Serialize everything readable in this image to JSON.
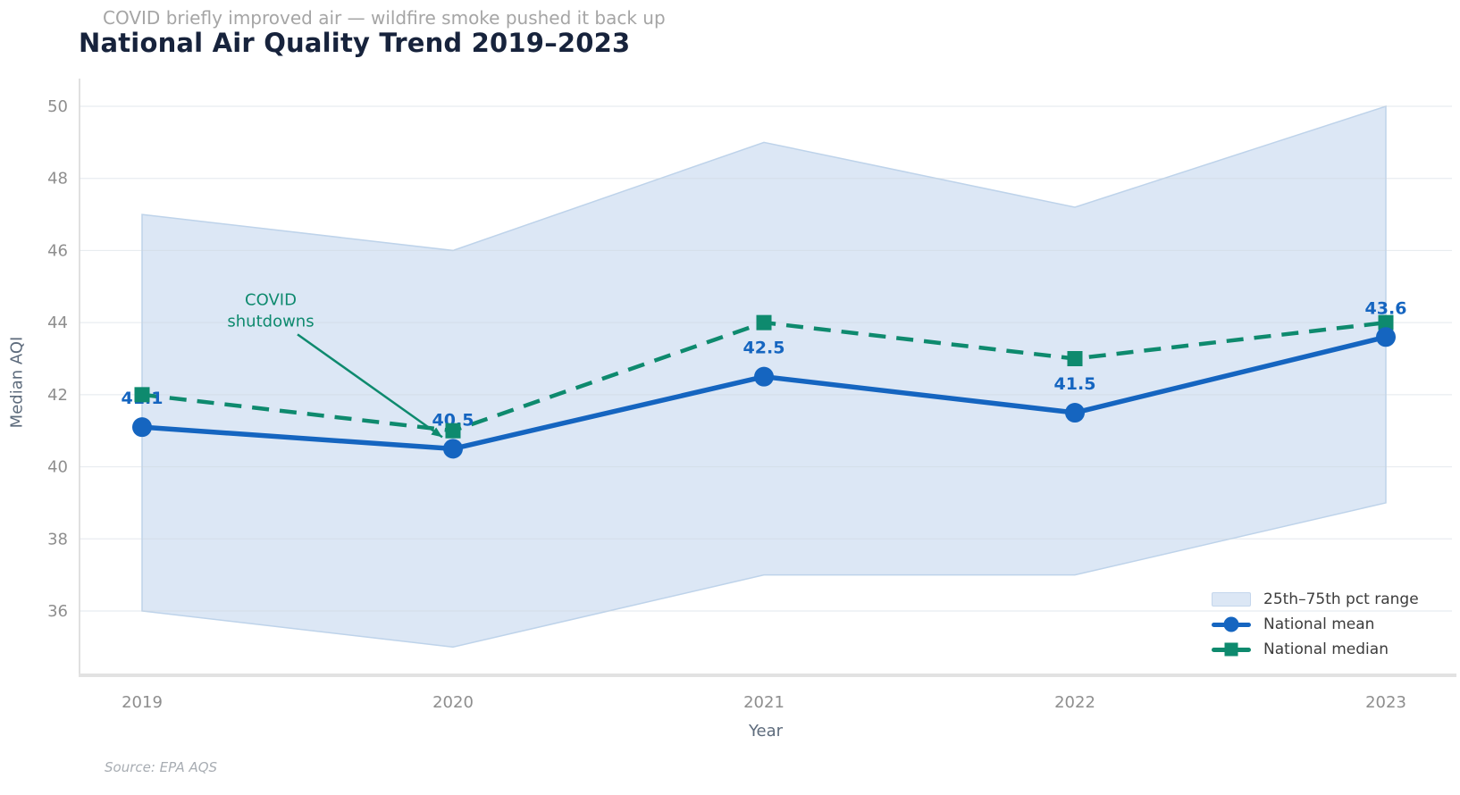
{
  "header": {
    "subtitle": "COVID briefly improved air — wildfire smoke pushed it back up",
    "title": "National Air Quality Trend 2019–2023"
  },
  "axes": {
    "xlabel": "Year",
    "ylabel": "Median AQI"
  },
  "footer": {
    "source": "Source: EPA AQS"
  },
  "legend": {
    "position": "lower right",
    "items": [
      {
        "label": "25th–75th pct range",
        "swatch": "band"
      },
      {
        "label": "National mean",
        "swatch": "line-circle"
      },
      {
        "label": "National median",
        "swatch": "line-square"
      }
    ]
  },
  "colors": {
    "mean_blue": "#1565c0",
    "median_green": "#0e8a6e",
    "band_fill": "#dce7f5",
    "band_edge": "#bed3ea",
    "grid": "#cdd5de",
    "tick_text": "#8e8e8e",
    "axis_label_text": "#5d6b7c",
    "title_text": "#17233c",
    "subtitle_text": "#a5a5a5"
  },
  "chart_data": {
    "type": "line",
    "title": "National Air Quality Trend 2019–2023",
    "subtitle": "COVID briefly improved air — wildfire smoke pushed it back up",
    "xlabel": "Year",
    "ylabel": "Median AQI",
    "categories": [
      "2019",
      "2020",
      "2021",
      "2022",
      "2023"
    ],
    "yticks": [
      36,
      38,
      40,
      42,
      44,
      46,
      48,
      50
    ],
    "ylim": [
      34.3,
      50.7
    ],
    "grid": true,
    "legend_position": "lower right",
    "series": [
      {
        "name": "25th–75th pct range",
        "type": "area_band",
        "fill": "#dce7f5",
        "edge": "#bed3ea",
        "upper": [
          47,
          46,
          49,
          47.2,
          50
        ],
        "lower": [
          36,
          35,
          37,
          37,
          39
        ]
      },
      {
        "name": "National median",
        "type": "line",
        "line_style": "dashed",
        "marker": "square",
        "color": "#0e8a6e",
        "values": [
          42,
          41,
          44,
          43,
          44
        ]
      },
      {
        "name": "National mean",
        "type": "line",
        "line_style": "solid",
        "marker": "circle",
        "color": "#1565c0",
        "values": [
          41.1,
          40.5,
          42.5,
          41.5,
          43.6
        ],
        "point_labels": [
          "41.1",
          "40.5",
          "42.5",
          "41.5",
          "43.6"
        ]
      }
    ],
    "annotation": {
      "lines": [
        "COVID",
        "shutdowns"
      ],
      "color": "#0e8a6e",
      "target_category": "2020",
      "target_value": 40.5
    }
  }
}
